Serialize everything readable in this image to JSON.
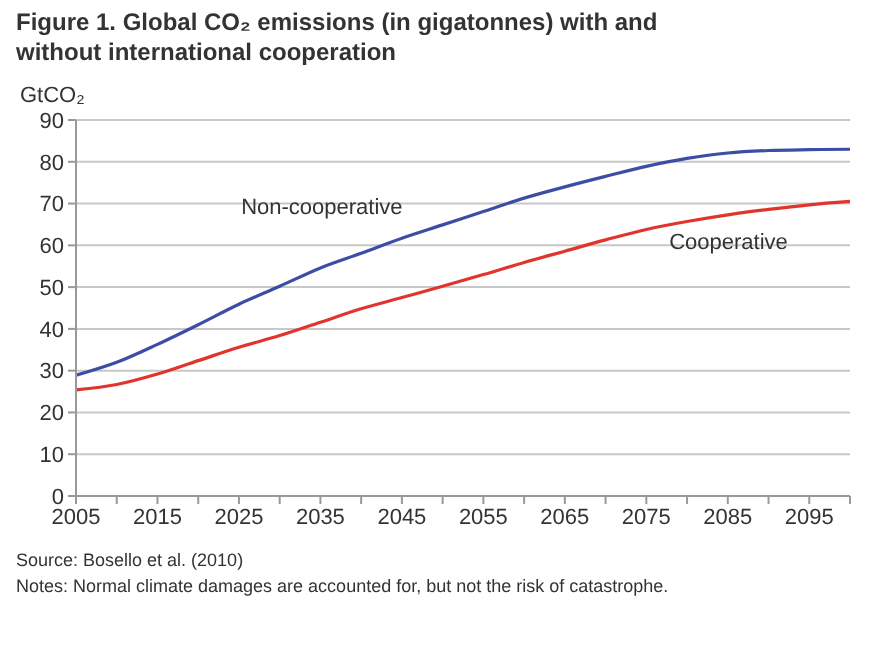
{
  "chart_data": {
    "type": "line",
    "title": "Figure 1. Global CO₂ emissions (in gigatonnes) with and without international cooperation",
    "ylabel": "GtCO₂",
    "x": [
      2005,
      2010,
      2015,
      2020,
      2025,
      2030,
      2035,
      2040,
      2045,
      2050,
      2055,
      2060,
      2065,
      2070,
      2075,
      2080,
      2085,
      2090,
      2095,
      2100
    ],
    "series": [
      {
        "name": "Non-cooperative",
        "color": "#3b4ea3",
        "values": [
          28.9,
          32,
          36.3,
          41,
          45.9,
          50.2,
          54.6,
          58.1,
          61.7,
          64.9,
          68.1,
          71.3,
          74,
          76.5,
          78.9,
          80.8,
          82.1,
          82.7,
          82.9,
          83
        ]
      },
      {
        "name": "Cooperative",
        "color": "#e0342c",
        "values": [
          25.4,
          26.7,
          29.2,
          32.4,
          35.6,
          38.4,
          41.6,
          44.8,
          47.5,
          50.2,
          53,
          55.9,
          58.6,
          61.3,
          63.8,
          65.7,
          67.3,
          68.6,
          69.7,
          70.5
        ]
      }
    ],
    "xlim": [
      2005,
      2100
    ],
    "xticks": [
      2005,
      {
        "value": 2010,
        "label": null
      },
      2015,
      {
        "value": 2020,
        "label": null
      },
      2025,
      {
        "value": 2030,
        "label": null
      },
      2035,
      {
        "value": 2040,
        "label": null
      },
      2045,
      {
        "value": 2050,
        "label": null
      },
      2055,
      {
        "value": 2060,
        "label": null
      },
      2065,
      {
        "value": 2070,
        "label": null
      },
      2075,
      {
        "value": 2080,
        "label": null
      },
      2085,
      {
        "value": 2090,
        "label": null
      },
      2095,
      {
        "value": 2100,
        "label": null
      }
    ],
    "ylim": [
      0,
      90
    ],
    "yticks": [
      0,
      10,
      20,
      30,
      40,
      50,
      60,
      70,
      80,
      90
    ],
    "grid": "y",
    "legend": false,
    "marker": "none",
    "line_style": "solid",
    "annotations": [
      "Source: Bosello et al. (2010)",
      "Notes: Normal climate damages are accounted for, but not the risk of catastrophe."
    ]
  }
}
